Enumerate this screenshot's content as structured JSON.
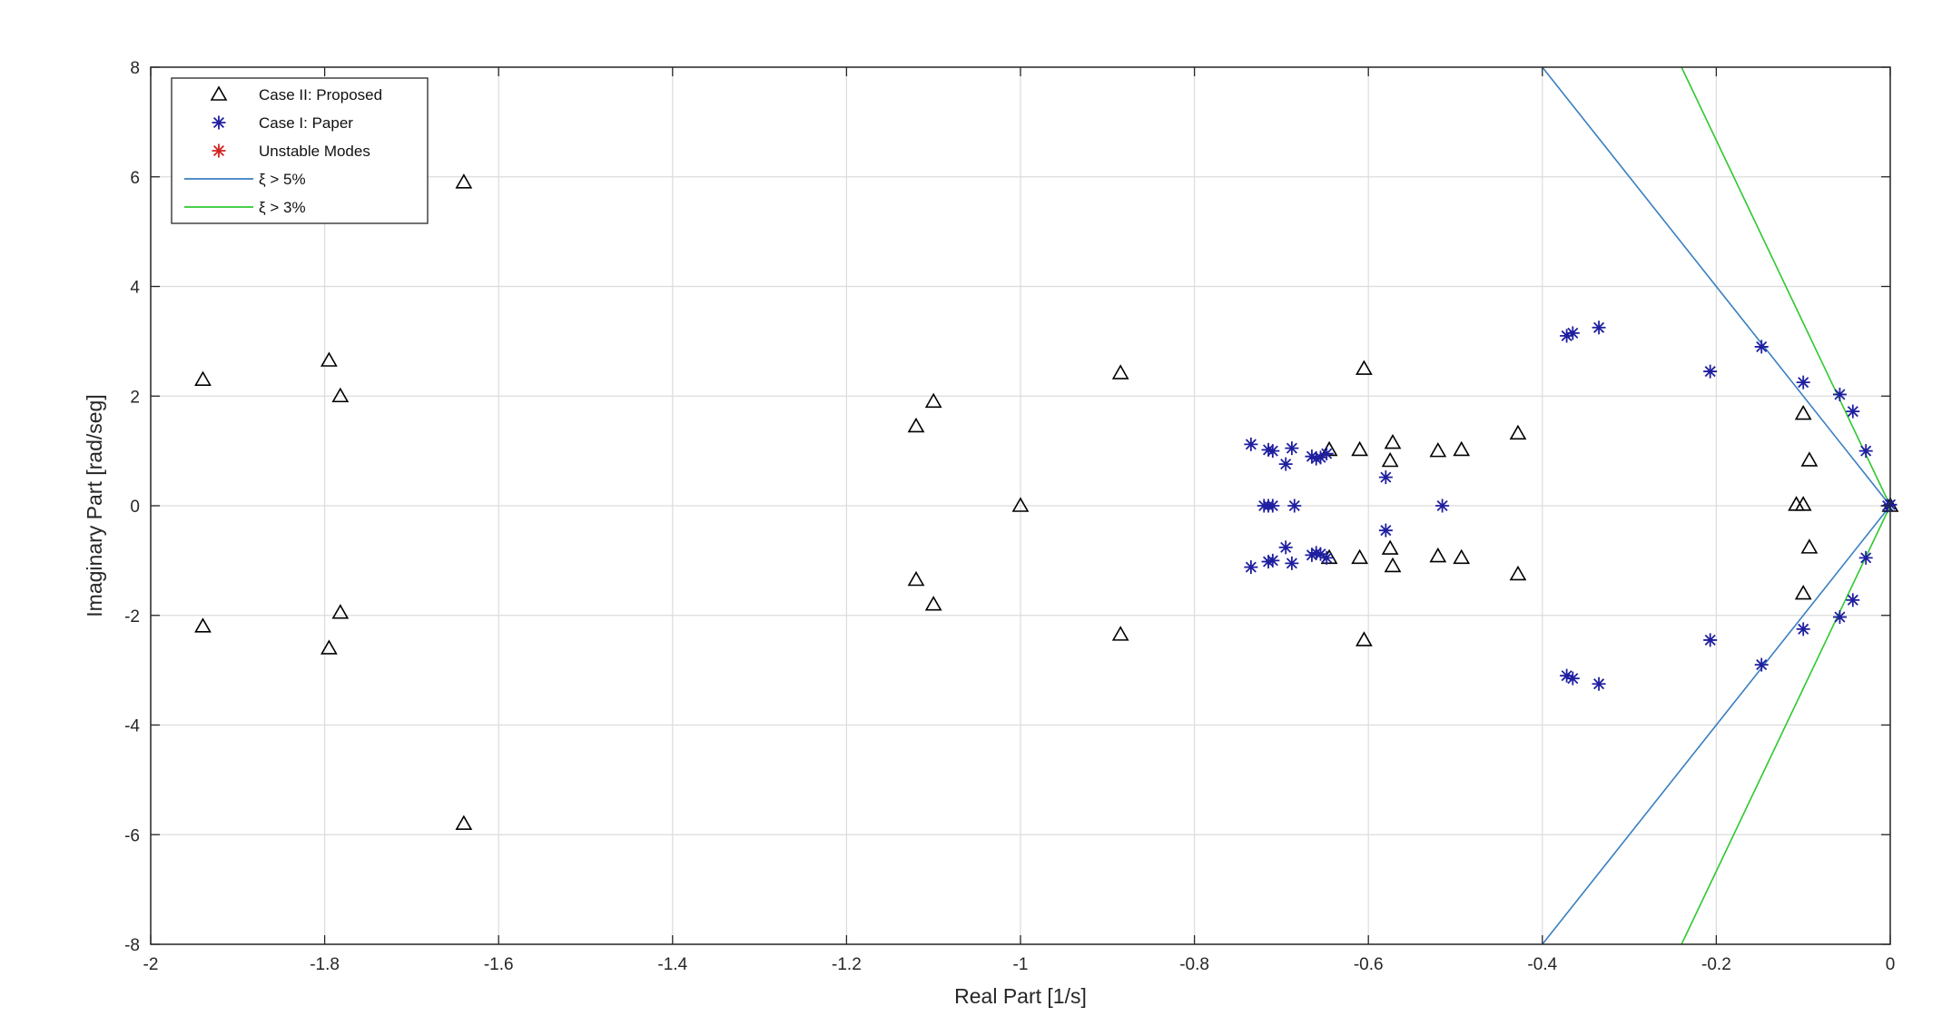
{
  "chart_data": {
    "type": "scatter",
    "xlabel": "Real Part [1/s]",
    "ylabel": "Imaginary Part [rad/seg]",
    "xlim": [
      -2,
      0
    ],
    "ylim": [
      -8,
      8
    ],
    "xticks": [
      -2,
      -1.8,
      -1.6,
      -1.4,
      -1.2,
      -1,
      -0.8,
      -0.6,
      -0.4,
      -0.2,
      0
    ],
    "xtick_labels": [
      "-2",
      "-1.8",
      "-1.6",
      "-1.4",
      "-1.2",
      "-1",
      "-0.8",
      "-0.6",
      "-0.4",
      "-0.2",
      "0"
    ],
    "yticks": [
      -8,
      -6,
      -4,
      -2,
      0,
      2,
      4,
      6,
      8
    ],
    "ytick_labels": [
      "-8",
      "-6",
      "-4",
      "-2",
      "0",
      "2",
      "4",
      "6",
      "8"
    ],
    "grid": true,
    "legend_position": "top-left",
    "legend": [
      {
        "label": "Case II: Proposed",
        "marker": "triangle",
        "color": "#000000"
      },
      {
        "label": "Case I: Paper",
        "marker": "asterisk",
        "color": "#1f1fa0"
      },
      {
        "label": "Unstable Modes",
        "marker": "asterisk",
        "color": "#d42020"
      },
      {
        "label": "ξ > 5%",
        "marker": "line",
        "color": "#3a7fc1"
      },
      {
        "label": "ξ > 3%",
        "marker": "line",
        "color": "#2ec82e"
      }
    ],
    "series": [
      {
        "name": "Case II: Proposed",
        "color": "#000000",
        "points": [
          [
            -1.94,
            2.3
          ],
          [
            -1.94,
            -2.2
          ],
          [
            -1.795,
            2.65
          ],
          [
            -1.795,
            -2.6
          ],
          [
            -1.782,
            2.0
          ],
          [
            -1.782,
            -1.95
          ],
          [
            -1.64,
            5.9
          ],
          [
            -1.64,
            -5.8
          ],
          [
            -1.12,
            1.45
          ],
          [
            -1.12,
            -1.35
          ],
          [
            -1.1,
            1.9
          ],
          [
            -1.1,
            -1.8
          ],
          [
            -1.0,
            0.0
          ],
          [
            -0.885,
            2.42
          ],
          [
            -0.885,
            -2.35
          ],
          [
            -0.605,
            2.5
          ],
          [
            -0.605,
            -2.45
          ],
          [
            -0.61,
            1.02
          ],
          [
            -0.61,
            -0.95
          ],
          [
            -0.572,
            1.15
          ],
          [
            -0.572,
            -1.1
          ],
          [
            -0.575,
            0.82
          ],
          [
            -0.575,
            -0.78
          ],
          [
            -0.52,
            1.0
          ],
          [
            -0.52,
            -0.92
          ],
          [
            -0.493,
            1.02
          ],
          [
            -0.493,
            -0.95
          ],
          [
            -0.428,
            1.32
          ],
          [
            -0.428,
            -1.25
          ],
          [
            -0.645,
            1.02
          ],
          [
            -0.645,
            -0.95
          ],
          [
            -0.1,
            1.68
          ],
          [
            -0.1,
            -1.6
          ],
          [
            -0.093,
            0.83
          ],
          [
            -0.093,
            -0.76
          ],
          [
            -0.1,
            0.02
          ],
          [
            -0.108,
            0.02
          ],
          [
            0.0,
            0.0
          ]
        ]
      },
      {
        "name": "Case I: Paper",
        "color": "#1f1fa0",
        "points": [
          [
            -0.735,
            1.12
          ],
          [
            -0.735,
            -1.12
          ],
          [
            -0.71,
            1.0
          ],
          [
            -0.71,
            -1.0
          ],
          [
            -0.715,
            1.02
          ],
          [
            -0.715,
            -1.02
          ],
          [
            -0.688,
            1.05
          ],
          [
            -0.688,
            -1.05
          ],
          [
            -0.695,
            0.76
          ],
          [
            -0.695,
            -0.76
          ],
          [
            -0.665,
            0.9
          ],
          [
            -0.665,
            -0.9
          ],
          [
            -0.66,
            0.86
          ],
          [
            -0.66,
            -0.86
          ],
          [
            -0.655,
            0.88
          ],
          [
            -0.655,
            -0.88
          ],
          [
            -0.648,
            0.95
          ],
          [
            -0.648,
            -0.95
          ],
          [
            -0.72,
            0.0
          ],
          [
            -0.715,
            0.0
          ],
          [
            -0.71,
            0.0
          ],
          [
            -0.685,
            0.0
          ],
          [
            -0.58,
            0.52
          ],
          [
            -0.58,
            -0.45
          ],
          [
            -0.515,
            0.0
          ],
          [
            -0.372,
            3.1
          ],
          [
            -0.372,
            -3.1
          ],
          [
            -0.365,
            3.15
          ],
          [
            -0.365,
            -3.15
          ],
          [
            -0.335,
            3.25
          ],
          [
            -0.335,
            -3.25
          ],
          [
            -0.207,
            2.45
          ],
          [
            -0.207,
            -2.45
          ],
          [
            -0.148,
            2.9
          ],
          [
            -0.148,
            -2.9
          ],
          [
            -0.1,
            2.25
          ],
          [
            -0.1,
            -2.25
          ],
          [
            -0.058,
            2.03
          ],
          [
            -0.058,
            -2.03
          ],
          [
            -0.043,
            1.72
          ],
          [
            -0.043,
            -1.72
          ],
          [
            -0.028,
            1.0
          ],
          [
            -0.028,
            -0.95
          ],
          [
            0.0,
            0.02
          ],
          [
            -0.003,
            0.0
          ]
        ]
      }
    ],
    "damping_lines": [
      {
        "name": "ξ > 5%",
        "color": "#3a7fc1",
        "x_at_ylim": -0.4,
        "ylim_abs": 8
      },
      {
        "name": "ξ > 3%",
        "color": "#2ec82e",
        "x_at_ylim": -0.24,
        "ylim_abs": 8
      }
    ]
  }
}
